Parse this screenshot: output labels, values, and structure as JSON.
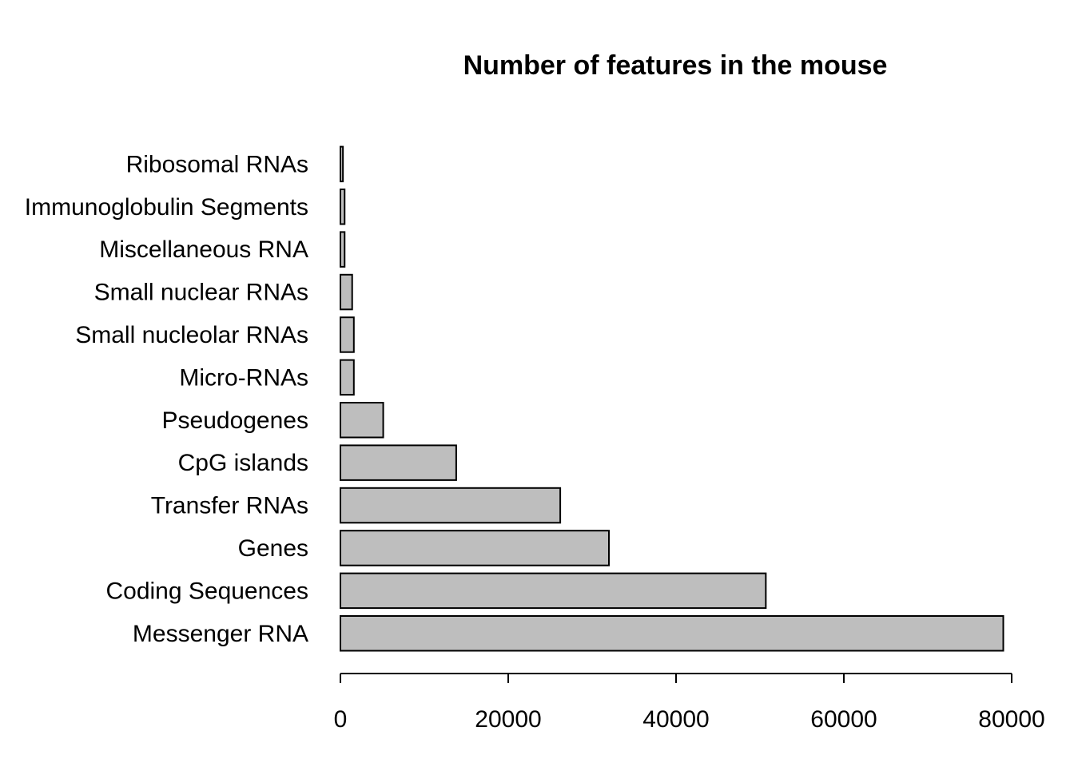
{
  "chart_data": {
    "type": "bar",
    "orientation": "horizontal",
    "title": "Number of features in the mouse",
    "xlabel": "",
    "ylabel": "",
    "categories": [
      "Messenger RNA",
      "Coding Sequences",
      "Genes",
      "Transfer RNAs",
      "CpG islands",
      "Pseudogenes",
      "Micro-RNAs",
      "Small nucleolar RNAs",
      "Small nuclear RNAs",
      "Miscellaneous RNA",
      "Immunoglobulin Segments",
      "Ribosomal RNAs"
    ],
    "values": [
      79000,
      50700,
      32000,
      26200,
      13800,
      5100,
      1600,
      1600,
      1400,
      500,
      500,
      300
    ],
    "xlim": [
      0,
      80000
    ],
    "x_ticks": [
      0,
      20000,
      40000,
      60000,
      80000
    ],
    "x_tick_labels": [
      "0",
      "20000",
      "40000",
      "60000",
      "80000"
    ],
    "grid": false,
    "colors": {
      "bar_fill": "#bebebe",
      "bar_stroke": "#000000"
    }
  }
}
